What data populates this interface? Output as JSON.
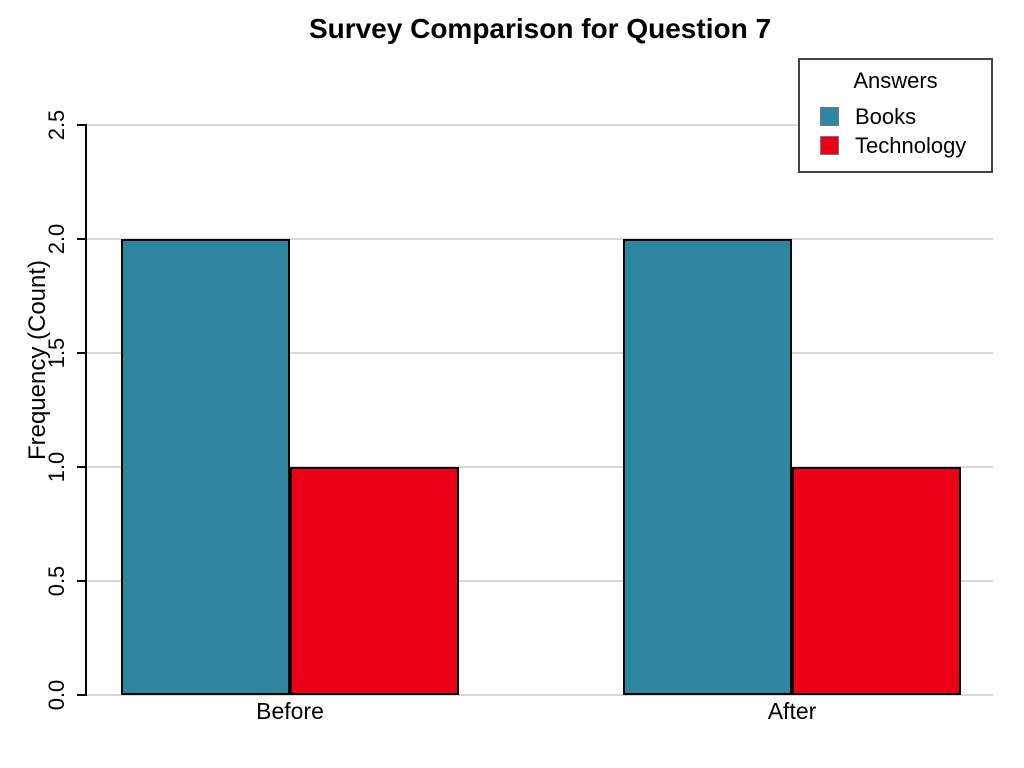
{
  "chart_data": {
    "type": "bar",
    "title": "Survey Comparison for Question 7",
    "xlabel": "",
    "ylabel": "Frequency (Count)",
    "categories": [
      "Before",
      "After"
    ],
    "series": [
      {
        "name": "Books",
        "values": [
          2,
          2
        ],
        "color": "#2E86A0"
      },
      {
        "name": "Technology",
        "values": [
          1,
          1
        ],
        "color": "#EC0015"
      }
    ],
    "ylim": [
      0,
      2.5
    ],
    "ytick_values": [
      0.0,
      0.5,
      1.0,
      1.5,
      2.0,
      2.5
    ],
    "ytick_labels": [
      "0.0",
      "0.5",
      "1.0",
      "1.5",
      "2.0",
      "2.5"
    ],
    "grid": true,
    "grid_color": "#d8d8d8",
    "axis_color": "#000000",
    "bar_border_color": "#000000",
    "legend": {
      "title": "Answers",
      "position": "top-right",
      "entries": [
        "Books",
        "Technology"
      ]
    }
  }
}
